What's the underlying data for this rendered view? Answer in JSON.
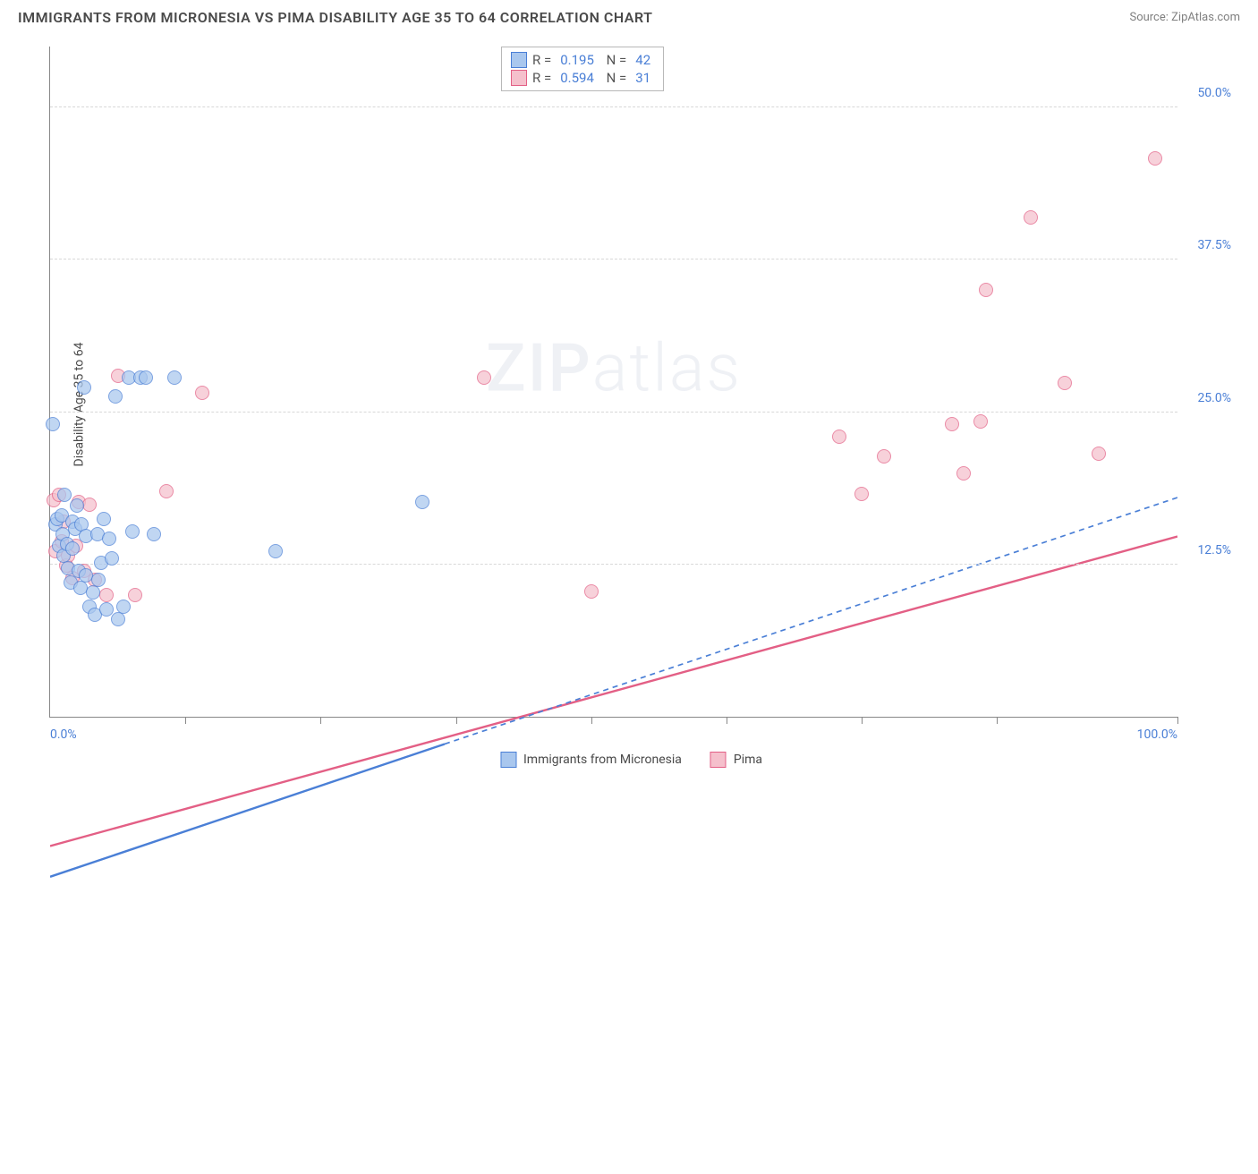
{
  "title": "IMMIGRANTS FROM MICRONESIA VS PIMA DISABILITY AGE 35 TO 64 CORRELATION CHART",
  "source": "Source: ZipAtlas.com",
  "watermark_bold": "ZIP",
  "watermark_light": "atlas",
  "ylabel": "Disability Age 35 to 64",
  "yticks": [
    {
      "pct": 12.5,
      "label": "12.5%"
    },
    {
      "pct": 25.0,
      "label": "25.0%"
    },
    {
      "pct": 37.5,
      "label": "37.5%"
    },
    {
      "pct": 50.0,
      "label": "50.0%"
    }
  ],
  "xlim": [
    0,
    100
  ],
  "ylim": [
    0,
    55
  ],
  "xtick_positions": [
    12,
    24,
    36,
    48,
    60,
    72,
    84,
    100
  ],
  "xaxis_labels": {
    "min": "0.0%",
    "max": "100.0%"
  },
  "series_a": {
    "name": "Immigrants from Micronesia",
    "fill": "#a9c7ee",
    "stroke": "#4a7fd6",
    "marker_r": 8,
    "R": "0.195",
    "N": "42",
    "line": {
      "y0": 14.5,
      "y1": 33.0,
      "x0": 0,
      "x1": 100,
      "solid_until_x": 35,
      "width": 2.4
    }
  },
  "series_b": {
    "name": "Pima",
    "fill": "#f5c0cc",
    "stroke": "#e35f85",
    "marker_r": 8,
    "R": "0.594",
    "N": "31",
    "line": {
      "y0": 16.0,
      "y1": 31.1,
      "x0": 0,
      "x1": 100,
      "solid_until_x": 100,
      "width": 2.4
    }
  },
  "points_a": [
    {
      "x": 0.2,
      "y": 24.0
    },
    {
      "x": 0.5,
      "y": 15.8
    },
    {
      "x": 0.6,
      "y": 16.2
    },
    {
      "x": 0.8,
      "y": 14.0
    },
    {
      "x": 1.0,
      "y": 16.5
    },
    {
      "x": 1.1,
      "y": 15.0
    },
    {
      "x": 1.2,
      "y": 13.2
    },
    {
      "x": 1.3,
      "y": 18.2
    },
    {
      "x": 1.5,
      "y": 14.2
    },
    {
      "x": 1.6,
      "y": 12.2
    },
    {
      "x": 1.8,
      "y": 11.0
    },
    {
      "x": 2.0,
      "y": 13.8
    },
    {
      "x": 2.0,
      "y": 16.0
    },
    {
      "x": 2.2,
      "y": 15.4
    },
    {
      "x": 2.4,
      "y": 17.3
    },
    {
      "x": 2.5,
      "y": 12.0
    },
    {
      "x": 2.7,
      "y": 10.6
    },
    {
      "x": 2.8,
      "y": 15.8
    },
    {
      "x": 3.0,
      "y": 27.0
    },
    {
      "x": 3.2,
      "y": 14.8
    },
    {
      "x": 3.2,
      "y": 11.6
    },
    {
      "x": 3.5,
      "y": 9.0
    },
    {
      "x": 3.8,
      "y": 10.2
    },
    {
      "x": 4.0,
      "y": 8.4
    },
    {
      "x": 4.2,
      "y": 15.0
    },
    {
      "x": 4.3,
      "y": 11.2
    },
    {
      "x": 4.5,
      "y": 12.6
    },
    {
      "x": 5.0,
      "y": 8.8
    },
    {
      "x": 5.2,
      "y": 14.6
    },
    {
      "x": 5.5,
      "y": 13.0
    },
    {
      "x": 5.8,
      "y": 26.3
    },
    {
      "x": 6.0,
      "y": 8.0
    },
    {
      "x": 6.5,
      "y": 9.0
    },
    {
      "x": 7.0,
      "y": 27.8
    },
    {
      "x": 7.3,
      "y": 15.2
    },
    {
      "x": 8.0,
      "y": 27.8
    },
    {
      "x": 8.5,
      "y": 27.8
    },
    {
      "x": 9.2,
      "y": 15.0
    },
    {
      "x": 11.0,
      "y": 27.8
    },
    {
      "x": 20.0,
      "y": 13.6
    },
    {
      "x": 33.0,
      "y": 17.6
    },
    {
      "x": 4.8,
      "y": 16.2
    }
  ],
  "points_b": [
    {
      "x": 0.3,
      "y": 17.8
    },
    {
      "x": 0.5,
      "y": 13.6
    },
    {
      "x": 0.8,
      "y": 18.2
    },
    {
      "x": 1.0,
      "y": 14.4
    },
    {
      "x": 1.2,
      "y": 16.0
    },
    {
      "x": 1.4,
      "y": 12.4
    },
    {
      "x": 1.6,
      "y": 13.2
    },
    {
      "x": 2.0,
      "y": 11.4
    },
    {
      "x": 2.3,
      "y": 14.0
    },
    {
      "x": 2.5,
      "y": 17.6
    },
    {
      "x": 3.0,
      "y": 12.0
    },
    {
      "x": 3.5,
      "y": 17.4
    },
    {
      "x": 4.0,
      "y": 11.2
    },
    {
      "x": 5.0,
      "y": 10.0
    },
    {
      "x": 6.0,
      "y": 28.0
    },
    {
      "x": 7.5,
      "y": 10.0
    },
    {
      "x": 10.3,
      "y": 18.5
    },
    {
      "x": 13.5,
      "y": 26.6
    },
    {
      "x": 38.5,
      "y": 27.8
    },
    {
      "x": 48.0,
      "y": 10.3
    },
    {
      "x": 70.0,
      "y": 23.0
    },
    {
      "x": 72.0,
      "y": 18.3
    },
    {
      "x": 74.0,
      "y": 21.4
    },
    {
      "x": 80.0,
      "y": 24.0
    },
    {
      "x": 81.0,
      "y": 20.0
    },
    {
      "x": 82.5,
      "y": 24.2
    },
    {
      "x": 83.0,
      "y": 35.0
    },
    {
      "x": 87.0,
      "y": 41.0
    },
    {
      "x": 90.0,
      "y": 27.4
    },
    {
      "x": 93.0,
      "y": 21.6
    },
    {
      "x": 98.0,
      "y": 45.8
    }
  ],
  "colors": {
    "accent": "#4a7fd6",
    "text": "#4a4a4a",
    "grid": "#d8d8d8"
  }
}
